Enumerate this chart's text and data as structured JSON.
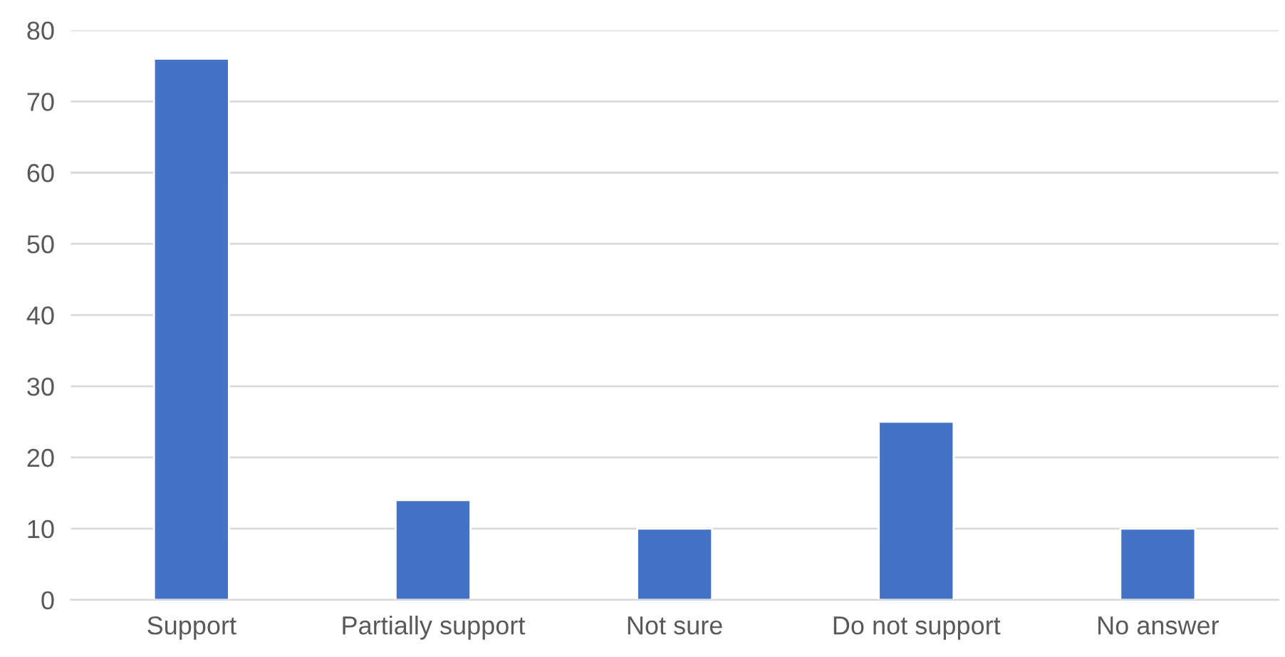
{
  "chart_data": {
    "type": "bar",
    "categories": [
      "Support",
      "Partially support",
      "Not sure",
      "Do not support",
      "No answer"
    ],
    "values": [
      76,
      14,
      10,
      25,
      10
    ],
    "color": "#4472c4",
    "ylim": [
      0,
      80
    ],
    "yticks": [
      0,
      10,
      20,
      30,
      40,
      50,
      60,
      70,
      80
    ],
    "grid": "y",
    "legend": false
  }
}
